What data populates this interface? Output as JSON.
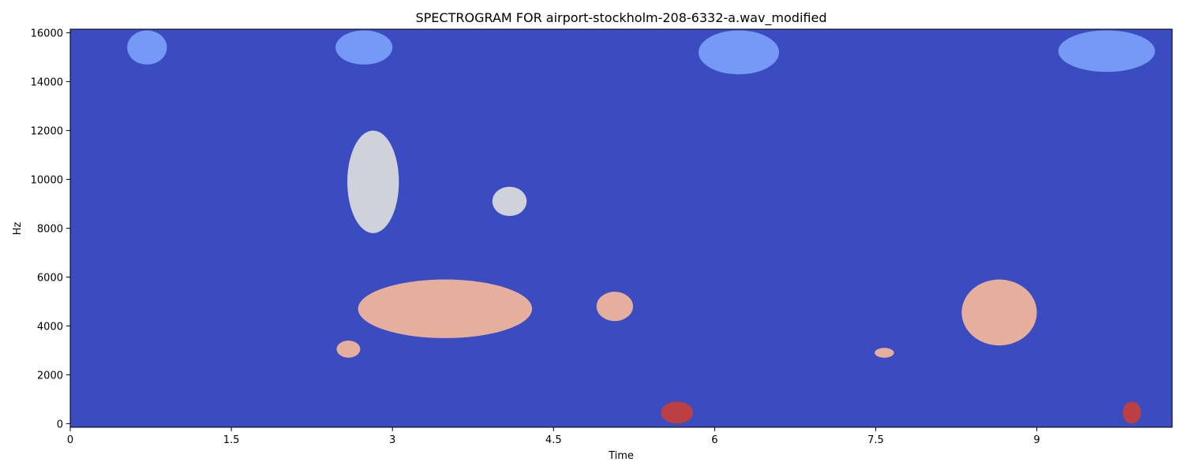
{
  "chart_data": {
    "type": "heatmap",
    "title": "SPECTROGRAM FOR airport-stockholm-208-6332-a.wav_modified",
    "xlabel": "Time",
    "ylabel": "Hz",
    "xlim": [
      0,
      10.26
    ],
    "ylim": [
      -150,
      16150
    ],
    "xticks": [
      0,
      1.5,
      3,
      4.5,
      6,
      7.5,
      9
    ],
    "xtick_labels": [
      "0",
      "1.5",
      "3",
      "4.5",
      "6",
      "7.5",
      "9"
    ],
    "yticks": [
      0,
      2000,
      4000,
      6000,
      8000,
      10000,
      12000,
      14000,
      16000
    ],
    "ytick_labels": [
      "0",
      "2000",
      "4000",
      "6000",
      "8000",
      "10000",
      "12000",
      "14000",
      "16000"
    ],
    "colormap": "coolwarm",
    "colors": {
      "background": "#3b4cc0",
      "light_blue": "#7b9ff9",
      "pale_blue": "#aac7fd",
      "neutral": "#dcdddd",
      "salmon": "#f4b69a",
      "orange_red": "#e8765c",
      "red": "#c83e38",
      "dark_red": "#b40426"
    },
    "regions": [
      {
        "time": [
          0.53,
          0.9
        ],
        "freq": [
          14700,
          16100
        ],
        "level": "light_blue"
      },
      {
        "time": [
          2.47,
          3.0
        ],
        "freq": [
          14700,
          16100
        ],
        "level": "light_blue"
      },
      {
        "time": [
          5.85,
          6.6
        ],
        "freq": [
          14300,
          16100
        ],
        "level": "light_blue"
      },
      {
        "time": [
          9.2,
          10.1
        ],
        "freq": [
          14400,
          16100
        ],
        "level": "light_blue"
      },
      {
        "time": [
          2.58,
          3.06
        ],
        "freq": [
          7800,
          12000
        ],
        "level": "neutral"
      },
      {
        "time": [
          3.93,
          4.25
        ],
        "freq": [
          8500,
          9700
        ],
        "level": "neutral"
      },
      {
        "time": [
          2.48,
          2.7
        ],
        "freq": [
          2700,
          3400
        ],
        "level": "salmon"
      },
      {
        "time": [
          2.68,
          4.3
        ],
        "freq": [
          3500,
          5900
        ],
        "level": "salmon"
      },
      {
        "time": [
          4.9,
          5.24
        ],
        "freq": [
          4200,
          5400
        ],
        "level": "salmon"
      },
      {
        "time": [
          7.49,
          7.67
        ],
        "freq": [
          2700,
          3100
        ],
        "level": "salmon"
      },
      {
        "time": [
          8.3,
          9.0
        ],
        "freq": [
          3200,
          5900
        ],
        "level": "salmon"
      },
      {
        "time": [
          5.5,
          5.8
        ],
        "freq": [
          0,
          900
        ],
        "level": "red"
      },
      {
        "time": [
          9.8,
          9.97
        ],
        "freq": [
          0,
          900
        ],
        "level": "red"
      }
    ]
  }
}
